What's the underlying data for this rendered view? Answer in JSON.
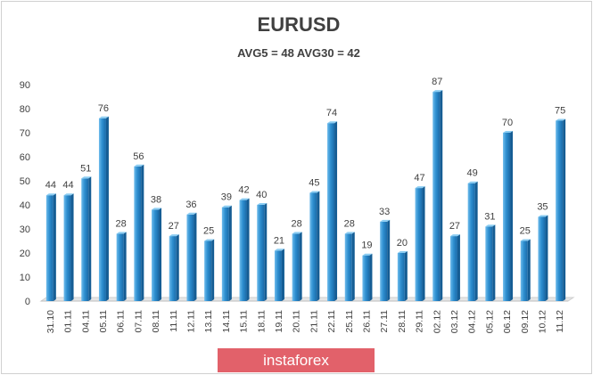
{
  "chart_data": {
    "type": "bar",
    "title": "EURUSD",
    "subtitle": "AVG5 = 48 AVG30 = 42",
    "categories": [
      "31.10",
      "01.11",
      "04.11",
      "05.11",
      "06.11",
      "07.11",
      "08.11",
      "11.11",
      "12.11",
      "13.11",
      "14.11",
      "15.11",
      "18.11",
      "19.11",
      "20.11",
      "21.11",
      "22.11",
      "25.11",
      "26.11",
      "27.11",
      "28.11",
      "29.11",
      "02.12",
      "03.12",
      "04.12",
      "05.12",
      "06.12",
      "09.12",
      "10.12",
      "11.12"
    ],
    "values": [
      44,
      44,
      51,
      76,
      28,
      56,
      38,
      27,
      36,
      25,
      39,
      42,
      40,
      21,
      28,
      45,
      74,
      28,
      19,
      33,
      20,
      47,
      87,
      27,
      49,
      31,
      70,
      25,
      35,
      75
    ],
    "ylim": [
      0,
      90
    ],
    "yticks": [
      0,
      10,
      20,
      30,
      40,
      50,
      60,
      70,
      80,
      90
    ],
    "xlabel": "",
    "ylabel": "",
    "grid": false,
    "bar_color": "#2e8fd0"
  },
  "watermark": "instaforex"
}
